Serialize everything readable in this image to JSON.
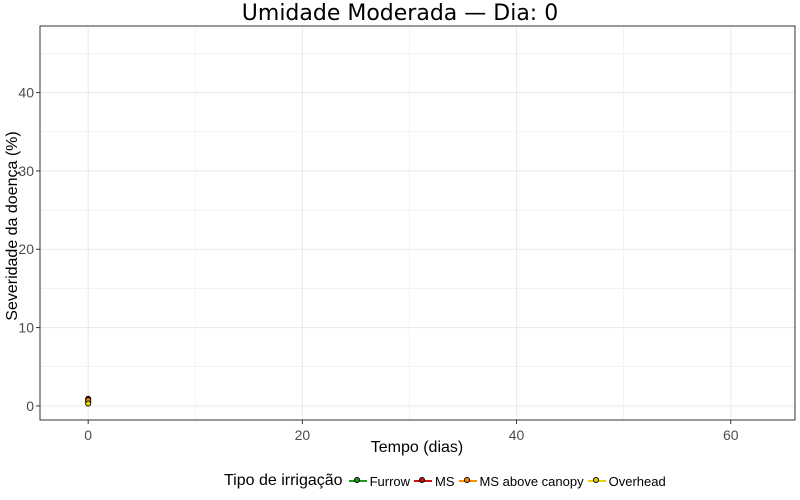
{
  "chart_data": {
    "type": "line",
    "title": "Umidade Moderada — Dia: 0",
    "xlabel": "Tempo (dias)",
    "ylabel": "Severidade da doença (%)",
    "xlim": [
      -4.5,
      66
    ],
    "ylim": [
      -1.8,
      48.5
    ],
    "x_ticks": [
      0,
      20,
      40,
      60
    ],
    "y_ticks": [
      0,
      10,
      20,
      30,
      40
    ],
    "grid": true,
    "legend_title": "Tipo de irrigação",
    "legend_position": "bottom",
    "series": [
      {
        "name": "Furrow",
        "color": "#1a9e1a",
        "x": [
          0
        ],
        "y": [
          0.5
        ]
      },
      {
        "name": "MS",
        "color": "#cc1111",
        "x": [
          0
        ],
        "y": [
          0.9
        ]
      },
      {
        "name": "MS above canopy",
        "color": "#ff8c00",
        "x": [
          0
        ],
        "y": [
          0.7
        ]
      },
      {
        "name": "Overhead",
        "color": "#e6d200",
        "x": [
          0
        ],
        "y": [
          0.3
        ]
      }
    ]
  }
}
